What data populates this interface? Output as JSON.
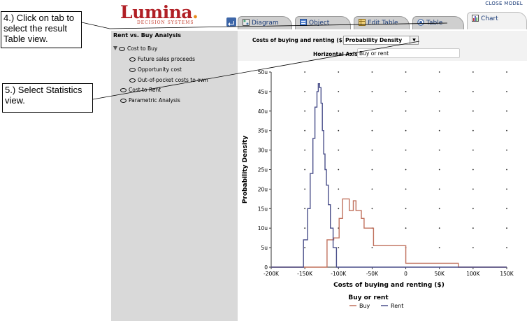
{
  "app": {
    "logo_main": "Lumina",
    "logo_sub": "DECISION SYSTEMS",
    "close_model": "CLOSE MODEL"
  },
  "tabs": [
    {
      "label": "Diagram",
      "icon": "diagram-icon"
    },
    {
      "label": "Object",
      "icon": "object-icon"
    },
    {
      "label": "Edit Table",
      "icon": "edit-table-icon"
    },
    {
      "label": "Table",
      "icon": "table-icon"
    },
    {
      "label": "Chart",
      "icon": "chart-icon",
      "active": true
    }
  ],
  "tree": {
    "title": "Rent vs. Buy Analysis",
    "items": [
      {
        "label": "Cost to Buy",
        "level": 0,
        "expanded": true
      },
      {
        "label": "Future sales proceeds",
        "level": 1
      },
      {
        "label": "Opportunity cost",
        "level": 1
      },
      {
        "label": "Out-of-pocket costs to own",
        "level": 1
      },
      {
        "label": "Cost to Rent",
        "level": 0
      },
      {
        "label": "Parametric Analysis",
        "level": 0
      }
    ]
  },
  "controls": {
    "result_label": "Costs of buying and renting ($)",
    "view_selected": "Probability Density",
    "haxis_label": "Horizontal Axis:",
    "haxis_value": "Buy or rent"
  },
  "annotations": {
    "step4": "4.) Click on tab to select the result Table view.",
    "step5": "5.) Select Statistics view."
  },
  "chart_data": {
    "type": "line",
    "xlabel": "Costs of buying and renting ($)",
    "ylabel": "Probability Density",
    "x_ticks": [
      "-200K",
      "-150K",
      "-100K",
      "-50K",
      "0",
      "50K",
      "100K",
      "150K"
    ],
    "y_ticks": [
      "0",
      "5u",
      "10u",
      "15u",
      "20u",
      "25u",
      "30u",
      "35u",
      "40u",
      "45u",
      "50u"
    ],
    "xlim": [
      -200000,
      150000
    ],
    "ylim": [
      0,
      50
    ],
    "y_unit": "u",
    "grid": "dots",
    "legend_title": "Buy or rent",
    "legend_placement": "bottom",
    "series": [
      {
        "name": "Buy",
        "color": "#c0705c",
        "x": [
          -200000,
          -117000,
          -117000,
          -107000,
          -107000,
          -99000,
          -99000,
          -94000,
          -94000,
          -84000,
          -84000,
          -78000,
          -78000,
          -74000,
          -74000,
          -66000,
          -66000,
          -62000,
          -62000,
          -57000,
          -57000,
          -48000,
          -48000,
          -40000,
          -40000,
          0,
          0,
          78000,
          78000,
          150000
        ],
        "y": [
          0,
          0,
          7,
          7,
          7.5,
          7.5,
          12.5,
          12.5,
          17.5,
          17.5,
          14.5,
          14.5,
          17,
          17,
          14.5,
          14.5,
          12.5,
          12.5,
          10,
          10,
          10,
          10,
          5.5,
          5.5,
          5.5,
          5.5,
          1,
          1,
          0,
          0
        ]
      },
      {
        "name": "Rent",
        "color": "#4a4f8a",
        "x": [
          -200000,
          -152000,
          -152000,
          -146000,
          -146000,
          -142000,
          -142000,
          -138000,
          -138000,
          -135000,
          -135000,
          -132000,
          -132000,
          -130000,
          -130000,
          -128000,
          -128000,
          -126000,
          -126000,
          -124000,
          -124000,
          -122000,
          -122000,
          -120000,
          -120000,
          -118000,
          -118000,
          -115000,
          -115000,
          -112000,
          -112000,
          -108000,
          -108000,
          -103000,
          -103000,
          150000
        ],
        "y": [
          0,
          0,
          7,
          7,
          15,
          15,
          24,
          24,
          33,
          33,
          41,
          41,
          45,
          45,
          47,
          47,
          46,
          46,
          42,
          42,
          35,
          35,
          29,
          29,
          25,
          25,
          21,
          21,
          16,
          16,
          10,
          10,
          5,
          5,
          0,
          0
        ]
      }
    ]
  }
}
